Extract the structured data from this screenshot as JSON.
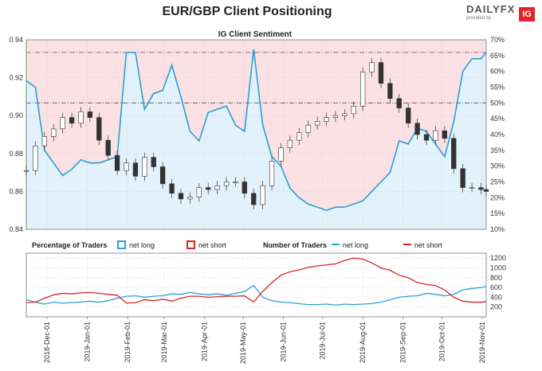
{
  "title": "EUR/GBP Client Positioning",
  "brand": {
    "logo_text": "DAILYFX",
    "provided_by": "provided by",
    "ig": "IG"
  },
  "chart_data": [
    {
      "type": "line",
      "title": "IG Client Sentiment",
      "x_dates": [
        "2018-11-15",
        "2018-11-22",
        "2018-11-29",
        "2018-12-06",
        "2018-12-13",
        "2018-12-20",
        "2018-12-27",
        "2019-01-03",
        "2019-01-10",
        "2019-01-17",
        "2019-01-24",
        "2019-01-31",
        "2019-02-07",
        "2019-02-14",
        "2019-02-21",
        "2019-02-28",
        "2019-03-07",
        "2019-03-14",
        "2019-03-21",
        "2019-03-28",
        "2019-04-04",
        "2019-04-11",
        "2019-04-18",
        "2019-04-25",
        "2019-05-02",
        "2019-05-09",
        "2019-05-16",
        "2019-05-23",
        "2019-05-30",
        "2019-06-06",
        "2019-06-13",
        "2019-06-20",
        "2019-06-27",
        "2019-07-04",
        "2019-07-11",
        "2019-07-18",
        "2019-07-25",
        "2019-08-01",
        "2019-08-08",
        "2019-08-15",
        "2019-08-22",
        "2019-08-29",
        "2019-09-05",
        "2019-09-12",
        "2019-09-19",
        "2019-09-26",
        "2019-10-03",
        "2019-10-10",
        "2019-10-17",
        "2019-10-24",
        "2019-10-31",
        "2019-11-04"
      ],
      "x_tick_labels": [
        "2018-Dec-01",
        "2019-Jan-01",
        "2019-Feb-01",
        "2019-Mar-01",
        "2019-Apr-01",
        "2019-May-01",
        "2019-Jun-01",
        "2019-Jul-01",
        "2019-Aug-01",
        "2019-Sep-01",
        "2019-Oct-01",
        "2019-Nov-01"
      ],
      "x_tick_dates": [
        "2018-12-01",
        "2019-01-01",
        "2019-02-01",
        "2019-03-01",
        "2019-04-01",
        "2019-05-01",
        "2019-06-01",
        "2019-07-01",
        "2019-08-01",
        "2019-09-01",
        "2019-10-01",
        "2019-11-01"
      ],
      "price_axis": {
        "ylim": [
          0.84,
          0.94
        ],
        "ticks": [
          "0.84",
          "0.86",
          "0.88",
          "0.90",
          "0.92",
          "0.94"
        ]
      },
      "percent_axis": {
        "ylim": [
          10,
          70
        ],
        "ticks": [
          "10%",
          "15%",
          "20%",
          "25%",
          "30%",
          "35%",
          "40%",
          "45%",
          "50%",
          "55%",
          "60%",
          "65%",
          "70%"
        ]
      },
      "price": [
        0.871,
        0.884,
        0.889,
        0.893,
        0.899,
        0.896,
        0.902,
        0.899,
        0.887,
        0.879,
        0.871,
        0.875,
        0.868,
        0.878,
        0.873,
        0.864,
        0.859,
        0.856,
        0.857,
        0.862,
        0.861,
        0.863,
        0.865,
        0.865,
        0.859,
        0.853,
        0.863,
        0.876,
        0.883,
        0.887,
        0.891,
        0.895,
        0.897,
        0.899,
        0.9,
        0.901,
        0.905,
        0.923,
        0.928,
        0.917,
        0.909,
        0.904,
        0.896,
        0.89,
        0.887,
        0.892,
        0.888,
        0.872,
        0.862,
        0.862,
        0.861,
        0.86
      ],
      "series": [
        {
          "name": "net long",
          "color": "#2a9fd6",
          "values": [
            57,
            55,
            35,
            31,
            27,
            29,
            32,
            31,
            31,
            32,
            33,
            66,
            66,
            48,
            53,
            54,
            62,
            52,
            41,
            38,
            47,
            48,
            49,
            43,
            41,
            67,
            43,
            33,
            30,
            23,
            20,
            18,
            17,
            16,
            17,
            17,
            18,
            19,
            22,
            25,
            28,
            38,
            37,
            42,
            41,
            37,
            33,
            44,
            60,
            64,
            64,
            66
          ]
        },
        {
          "name": "net short",
          "color": "#d62728",
          "values": [
            43,
            45,
            65,
            69,
            73,
            71,
            68,
            69,
            69,
            68,
            67,
            34,
            34,
            52,
            47,
            46,
            38,
            48,
            59,
            62,
            53,
            52,
            51,
            57,
            59,
            33,
            57,
            67,
            70,
            77,
            80,
            82,
            83,
            84,
            83,
            83,
            82,
            81,
            78,
            75,
            72,
            62,
            63,
            58,
            59,
            63,
            67,
            56,
            40,
            36,
            36,
            34
          ]
        }
      ],
      "reference_lines": [
        66,
        50
      ]
    },
    {
      "type": "line",
      "ylim": [
        0,
        1300
      ],
      "ticks": [
        "200",
        "400",
        "600",
        "800",
        "1000",
        "1200"
      ],
      "left_label": "Percentage of Traders",
      "middle_label": "Number of Traders",
      "series": [
        {
          "name": "net long",
          "color": "#2a9fd6",
          "values": [
            350,
            300,
            260,
            300,
            280,
            290,
            300,
            320,
            300,
            330,
            380,
            420,
            430,
            400,
            420,
            430,
            470,
            460,
            500,
            470,
            450,
            470,
            440,
            480,
            520,
            640,
            400,
            330,
            300,
            290,
            270,
            250,
            250,
            260,
            240,
            260,
            250,
            260,
            270,
            300,
            350,
            400,
            420,
            430,
            480,
            460,
            430,
            460,
            550,
            580,
            600,
            620
          ]
        },
        {
          "name": "net short",
          "color": "#d62728",
          "values": [
            290,
            300,
            380,
            450,
            480,
            470,
            490,
            500,
            480,
            460,
            440,
            280,
            290,
            350,
            330,
            360,
            320,
            380,
            420,
            420,
            400,
            410,
            420,
            420,
            430,
            300,
            520,
            700,
            850,
            920,
            960,
            1010,
            1040,
            1060,
            1080,
            1150,
            1200,
            1180,
            1100,
            1000,
            950,
            850,
            800,
            700,
            660,
            640,
            550,
            400,
            320,
            300,
            300,
            310
          ]
        }
      ]
    }
  ]
}
